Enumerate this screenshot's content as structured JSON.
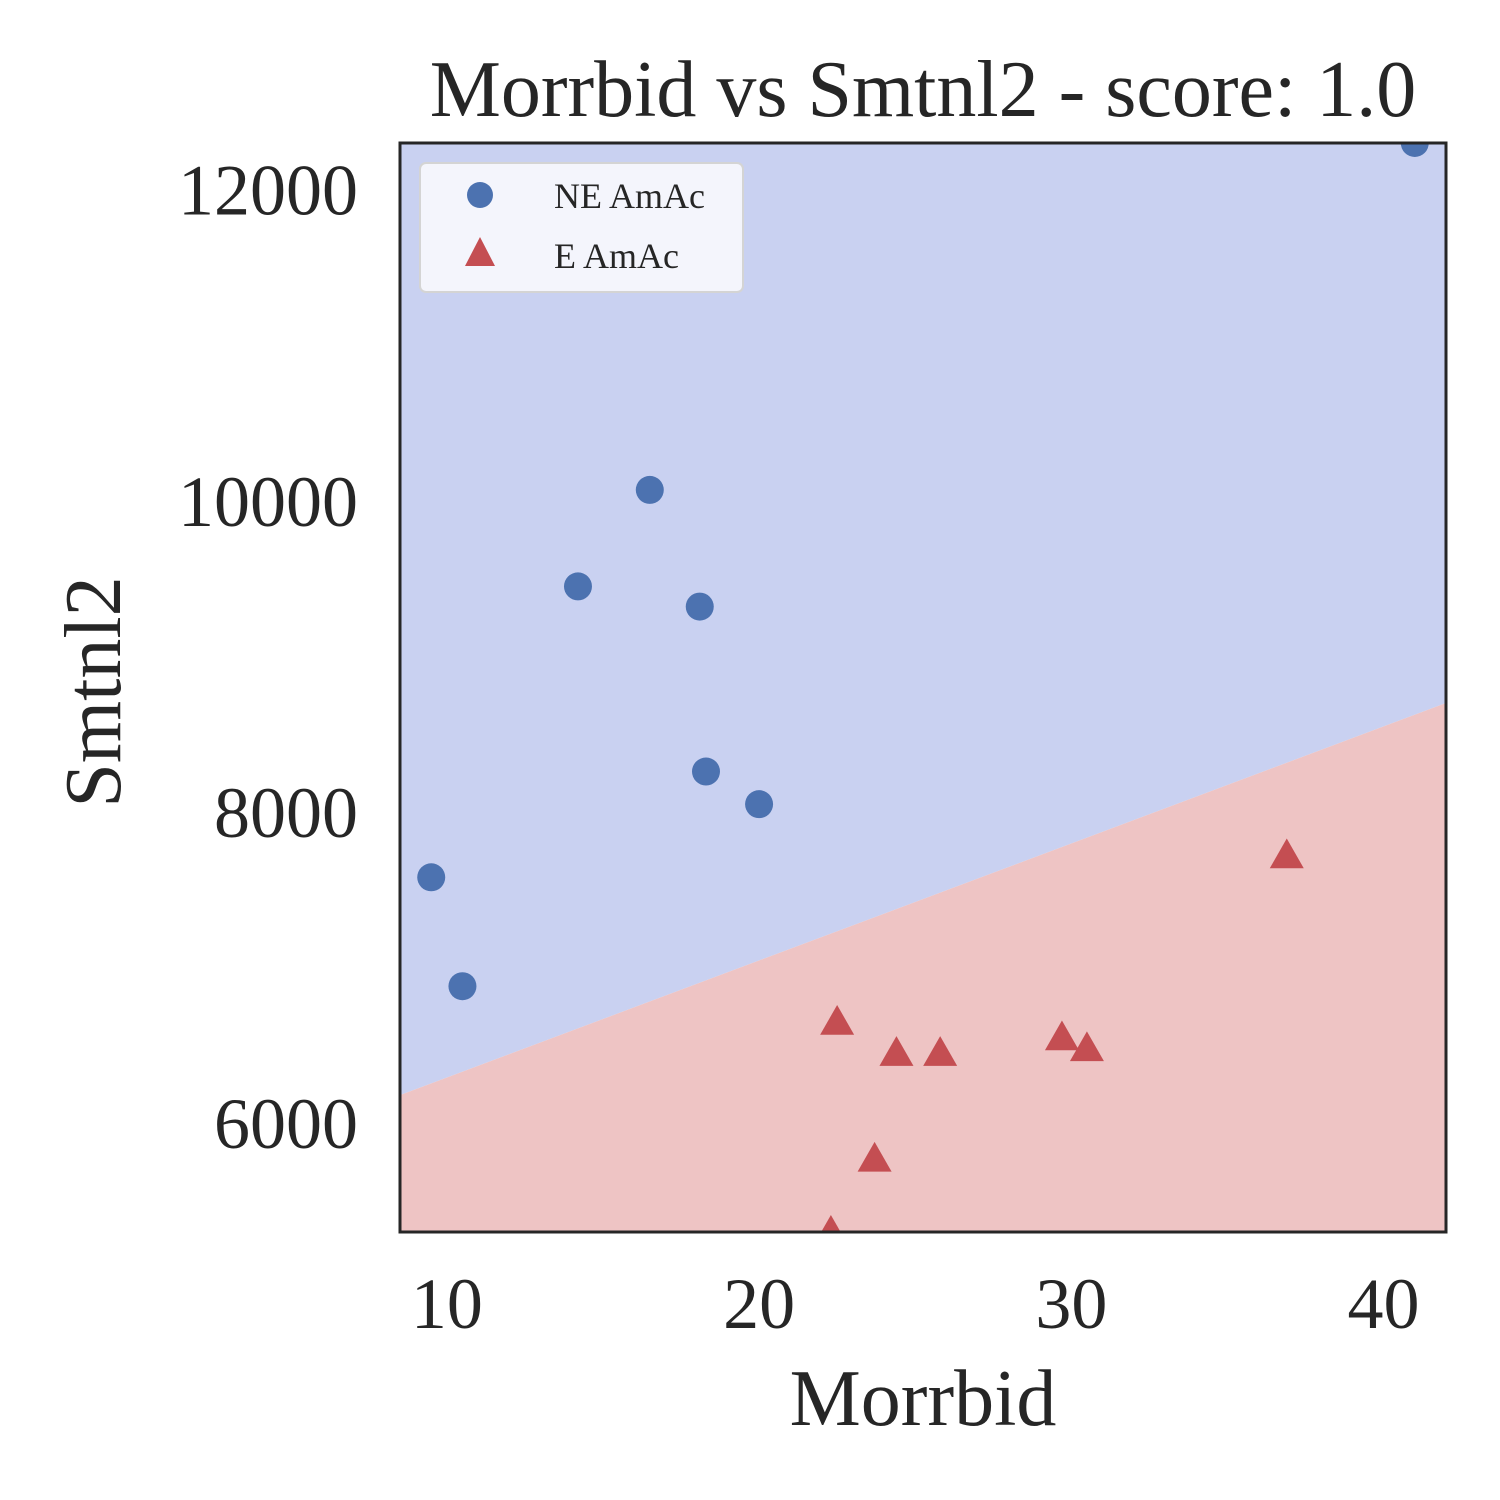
{
  "chart_data": {
    "type": "scatter",
    "title": "Morrbid vs Smtnl2 - score: 1.0",
    "xlabel": "Morrbid",
    "ylabel": "Smtnl2",
    "xlim": [
      8.5,
      42
    ],
    "ylim": [
      5300,
      12300
    ],
    "x_ticks": [
      10,
      20,
      30,
      40
    ],
    "y_ticks": [
      6000,
      8000,
      10000,
      12000
    ],
    "grid": false,
    "legend_position": "top-left",
    "decision_boundary": {
      "points": [
        [
          8.5,
          6180
        ],
        [
          42,
          8700
        ]
      ],
      "above_class": "NE AmAc",
      "below_class": "E AmAc"
    },
    "series": [
      {
        "name": "NE AmAc",
        "marker": "circle",
        "color": "#4c72b0",
        "region_color": "#c9d1f1",
        "points": [
          [
            9.5,
            7580
          ],
          [
            10.5,
            6880
          ],
          [
            14.2,
            9450
          ],
          [
            16.5,
            10070
          ],
          [
            18.1,
            9320
          ],
          [
            18.3,
            8260
          ],
          [
            20.0,
            8050
          ],
          [
            41.0,
            12300
          ]
        ]
      },
      {
        "name": "E AmAc",
        "marker": "triangle",
        "color": "#c44e52",
        "region_color": "#eec4c4",
        "points": [
          [
            22.5,
            6650
          ],
          [
            24.4,
            6450
          ],
          [
            25.8,
            6450
          ],
          [
            29.7,
            6550
          ],
          [
            30.5,
            6480
          ],
          [
            36.9,
            7720
          ],
          [
            23.7,
            5770
          ],
          [
            22.3,
            5300
          ]
        ]
      }
    ]
  }
}
